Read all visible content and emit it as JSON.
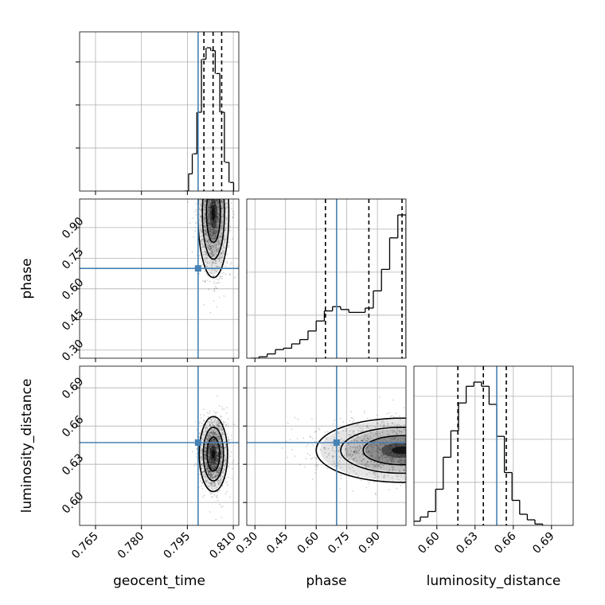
{
  "chart_data": {
    "type": "corner",
    "grid": true,
    "params": [
      "geocent_time",
      "phase",
      "luminosity_distance"
    ],
    "truths": {
      "geocent_time": 0.7985,
      "phase": 0.7,
      "luminosity_distance": 0.647
    },
    "colors": {
      "truth": "#4682b4",
      "hist": "#000000",
      "grid": "#b0b0b0",
      "quantile": "#000000"
    },
    "ranges": {
      "geocent_time": [
        0.7598,
        0.8118
      ],
      "phase": [
        0.26,
        1.04
      ],
      "luminosity_distance": [
        0.582,
        0.707
      ]
    },
    "ticks": {
      "geocent_time": [
        "0.765",
        "0.780",
        "0.795",
        "0.810"
      ],
      "phase": [
        "0.30",
        "0.45",
        "0.60",
        "0.75",
        "0.90"
      ],
      "luminosity_distance": [
        "0.60",
        "0.63",
        "0.66",
        "0.69"
      ]
    },
    "xlabels": {
      "geocent_time": "geocent_time",
      "phase": "phase",
      "luminosity_distance": "luminosity_distance"
    },
    "ylabels": {
      "phase": "phase",
      "luminosity_distance": "luminosity_distance"
    },
    "histograms": [
      {
        "param": "geocent_time",
        "quantiles": [
          0.8004,
          0.8034,
          0.8062
        ],
        "bins": [
          [
            0.7948,
            0.0
          ],
          [
            0.796,
            0.12
          ],
          [
            0.7975,
            0.26
          ],
          [
            0.799,
            0.55
          ],
          [
            0.8005,
            0.92
          ],
          [
            0.802,
            1.0
          ],
          [
            0.8035,
            0.98
          ],
          [
            0.805,
            0.82
          ],
          [
            0.8065,
            0.55
          ],
          [
            0.808,
            0.2
          ],
          [
            0.8095,
            0.06
          ]
        ]
      },
      {
        "param": "phase",
        "quantiles": [
          0.6454,
          0.8582,
          1.0206
        ],
        "bins": [
          [
            0.3,
            0.0
          ],
          [
            0.34,
            0.01
          ],
          [
            0.38,
            0.03
          ],
          [
            0.42,
            0.06
          ],
          [
            0.46,
            0.07
          ],
          [
            0.5,
            0.1
          ],
          [
            0.54,
            0.13
          ],
          [
            0.58,
            0.19
          ],
          [
            0.62,
            0.26
          ],
          [
            0.66,
            0.33
          ],
          [
            0.7,
            0.36
          ],
          [
            0.74,
            0.34
          ],
          [
            0.78,
            0.32
          ],
          [
            0.82,
            0.32
          ],
          [
            0.86,
            0.35
          ],
          [
            0.9,
            0.47
          ],
          [
            0.94,
            0.62
          ],
          [
            0.98,
            0.84
          ],
          [
            1.02,
            1.0
          ]
        ]
      },
      {
        "param": "luminosity_distance",
        "quantiles": [
          0.6165,
          0.6365,
          0.6545
        ],
        "bins": [
          [
            0.584,
            0.03
          ],
          [
            0.59,
            0.06
          ],
          [
            0.596,
            0.1
          ],
          [
            0.602,
            0.26
          ],
          [
            0.608,
            0.49
          ],
          [
            0.614,
            0.68
          ],
          [
            0.62,
            0.88
          ],
          [
            0.626,
            1.0
          ],
          [
            0.632,
            1.03
          ],
          [
            0.638,
            1.0
          ],
          [
            0.644,
            0.87
          ],
          [
            0.65,
            0.64
          ],
          [
            0.656,
            0.38
          ],
          [
            0.662,
            0.18
          ],
          [
            0.668,
            0.08
          ],
          [
            0.674,
            0.04
          ],
          [
            0.68,
            0.01
          ]
        ]
      }
    ],
    "panels_2d": [
      {
        "x": "geocent_time",
        "y": "phase",
        "peak": [
          0.8035,
          0.97
        ],
        "spread": [
          0.0024,
          0.15
        ]
      },
      {
        "x": "geocent_time",
        "y": "luminosity_distance",
        "peak": [
          0.8035,
          0.638
        ],
        "spread": [
          0.0022,
          0.014
        ]
      },
      {
        "x": "phase",
        "y": "luminosity_distance",
        "peak": [
          1.02,
          0.641
        ],
        "spread": [
          0.2,
          0.012
        ]
      }
    ]
  }
}
